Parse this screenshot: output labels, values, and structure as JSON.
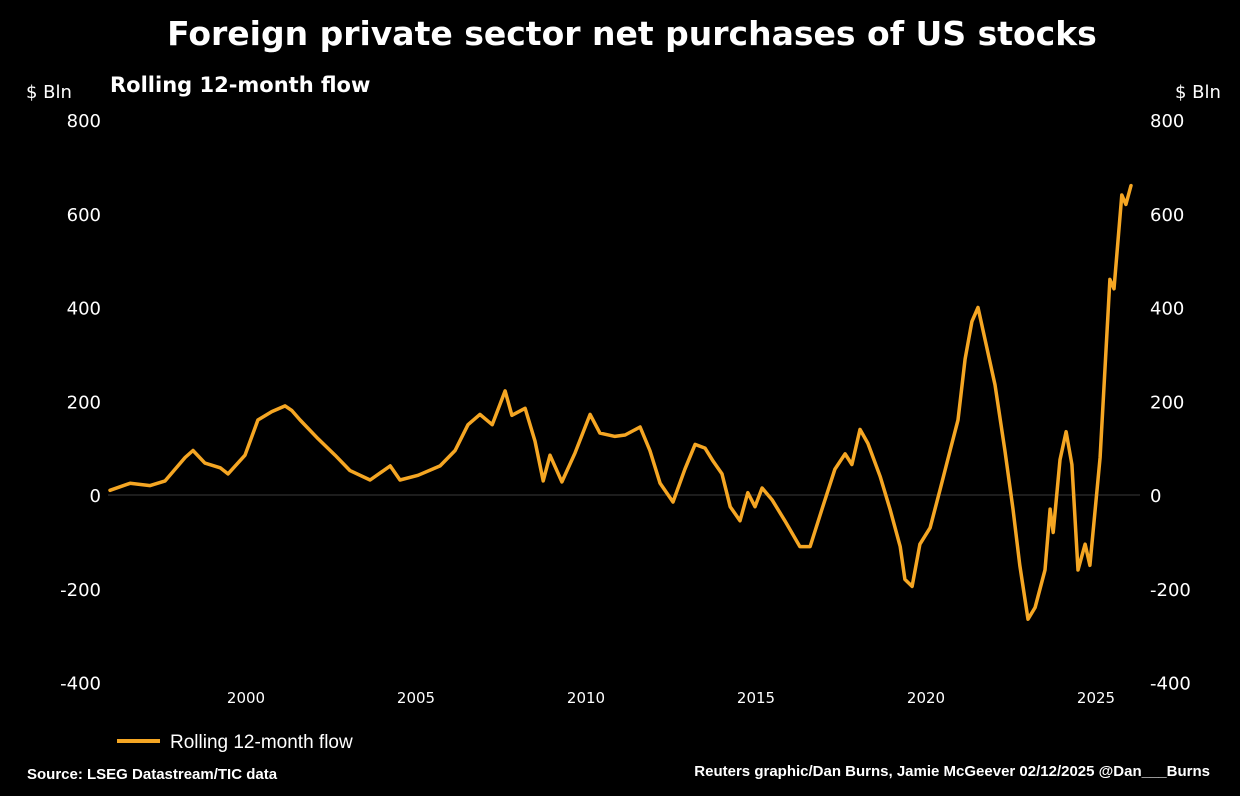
{
  "chart_data": {
    "type": "line",
    "title": "Foreign private sector net purchases of US stocks",
    "subtitle": "Rolling 12-month flow",
    "ylabel_left": "$ Bln",
    "ylabel_right": "$ Bln",
    "xlabel": "",
    "ylim": [
      -400,
      800
    ],
    "xlim": [
      1996,
      2026
    ],
    "yticks": [
      800,
      600,
      400,
      200,
      0,
      -200,
      -400
    ],
    "xticks": [
      2000,
      2005,
      2010,
      2015,
      2020,
      2025
    ],
    "grid": "zero line only",
    "legend_position": "bottom-left",
    "colors": {
      "line": "#f5a623",
      "background": "#000000",
      "zero_line": "#3a3a3a"
    },
    "series": [
      {
        "name": "Rolling 12-month flow",
        "x": [
          1996.0,
          1996.59,
          1997.18,
          1997.62,
          1998.21,
          1998.44,
          1998.79,
          1999.24,
          1999.47,
          1999.97,
          2000.35,
          2000.76,
          2001.15,
          2001.35,
          2001.59,
          2002.12,
          2002.62,
          2003.06,
          2003.65,
          2004.24,
          2004.53,
          2005.06,
          2005.71,
          2006.15,
          2006.53,
          2006.88,
          2007.24,
          2007.62,
          2007.82,
          2008.21,
          2008.5,
          2008.74,
          2008.94,
          2009.29,
          2009.68,
          2010.12,
          2010.41,
          2010.85,
          2011.15,
          2011.59,
          2011.88,
          2012.18,
          2012.56,
          2012.91,
          2013.21,
          2013.5,
          2013.74,
          2014.0,
          2014.24,
          2014.53,
          2014.76,
          2014.97,
          2015.18,
          2015.47,
          2015.85,
          2016.29,
          2016.59,
          2016.94,
          2017.32,
          2017.62,
          2017.82,
          2018.06,
          2018.29,
          2018.65,
          2018.94,
          2019.24,
          2019.38,
          2019.59,
          2019.82,
          2020.12,
          2020.41,
          2020.71,
          2020.94,
          2021.15,
          2021.35,
          2021.53,
          2021.74,
          2022.03,
          2022.32,
          2022.56,
          2022.76,
          2023.0,
          2023.21,
          2023.5,
          2023.65,
          2023.74,
          2023.94,
          2024.12,
          2024.29,
          2024.47,
          2024.68,
          2024.82,
          2025.12,
          2025.41,
          2025.53,
          2025.76,
          2025.88,
          2026.03
        ],
        "values": [
          10,
          25,
          20,
          30,
          80,
          95,
          68,
          58,
          45,
          85,
          160,
          178,
          190,
          180,
          160,
          120,
          85,
          52,
          32,
          62,
          32,
          42,
          62,
          95,
          150,
          172,
          150,
          222,
          170,
          185,
          115,
          30,
          85,
          28,
          90,
          172,
          132,
          125,
          128,
          145,
          95,
          25,
          -15,
          55,
          108,
          100,
          72,
          45,
          -25,
          -55,
          5,
          -25,
          15,
          -10,
          -55,
          -110,
          -110,
          -30,
          55,
          88,
          65,
          140,
          110,
          40,
          -30,
          -110,
          -180,
          -195,
          -105,
          -70,
          10,
          95,
          160,
          290,
          370,
          400,
          330,
          235,
          95,
          -30,
          -150,
          -265,
          -240,
          -160,
          -30,
          -80,
          75,
          135,
          65,
          -160,
          -105,
          -150,
          80,
          460,
          440,
          640,
          620,
          660
        ]
      }
    ],
    "legend": [
      "Rolling 12-month flow"
    ],
    "source": "Source: LSEG Datastream/TIC data",
    "credit": "Reuters graphic/Dan Burns, Jamie McGeever 02/12/2025 @Dan___Burns"
  }
}
